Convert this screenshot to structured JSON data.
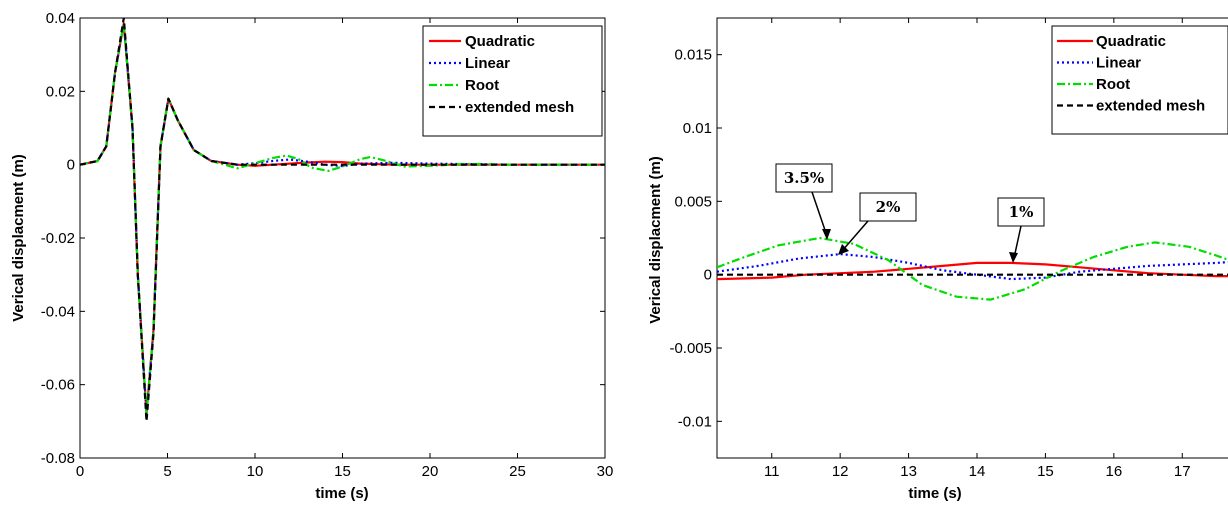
{
  "colors": {
    "Quadratic": "#ff0000",
    "Linear": "#0000ff",
    "Root": "#00dd00",
    "extended mesh": "#000000"
  },
  "chart_data": [
    {
      "type": "line",
      "xlabel": "time (s)",
      "ylabel": "Verical displacment (m)",
      "xlim": [
        0,
        30
      ],
      "ylim": [
        -0.08,
        0.04
      ],
      "xticks": [
        "0",
        "5",
        "10",
        "15",
        "20",
        "25",
        "30"
      ],
      "yticks": [
        "0.04",
        "0.02",
        "0",
        "-0.02",
        "-0.04",
        "-0.06",
        "-0.08"
      ],
      "grid": false,
      "legend_position": "top-right",
      "series": [
        {
          "name": "Quadratic",
          "style": "solid",
          "x": [
            0,
            1,
            1.5,
            2,
            2.5,
            3,
            3.3,
            3.8,
            4.2,
            4.6,
            5.05,
            5.6,
            6.5,
            7.5,
            9,
            10,
            11,
            12,
            13,
            14,
            15,
            16,
            18,
            20,
            25,
            30
          ],
          "y": [
            0,
            0.001,
            0.005,
            0.025,
            0.0385,
            0.01,
            -0.03,
            -0.068,
            -0.045,
            0.005,
            0.018,
            0.012,
            0.004,
            0.001,
            0,
            -0.0003,
            0,
            0.0003,
            0.0006,
            0.0008,
            0.0007,
            0.0003,
            0,
            0,
            0,
            0
          ]
        },
        {
          "name": "Linear",
          "style": "dotted",
          "x": [
            0,
            1,
            1.5,
            2,
            2.5,
            3,
            3.3,
            3.8,
            4.2,
            4.6,
            5.05,
            5.6,
            6.5,
            7.5,
            9,
            10,
            11,
            12,
            13,
            14,
            15,
            16,
            18,
            20,
            25,
            30
          ],
          "y": [
            0,
            0.001,
            0.005,
            0.025,
            0.0385,
            0.01,
            -0.03,
            -0.068,
            -0.045,
            0.005,
            0.018,
            0.012,
            0.004,
            0.001,
            0,
            0.0004,
            0.001,
            0.0014,
            0.0008,
            0,
            -0.0004,
            0.0003,
            0.0005,
            0.0003,
            0,
            0
          ]
        },
        {
          "name": "Root",
          "style": "dashdot",
          "x": [
            0,
            1,
            1.5,
            2,
            2.5,
            3,
            3.3,
            3.8,
            4.2,
            4.6,
            5.05,
            5.6,
            6.5,
            7.5,
            9,
            10,
            11,
            11.8,
            12.5,
            13.2,
            14.2,
            15,
            16,
            16.6,
            17.5,
            18.5,
            20,
            22,
            25,
            30
          ],
          "y": [
            0,
            0.001,
            0.005,
            0.025,
            0.0385,
            0.01,
            -0.03,
            -0.068,
            -0.045,
            0.005,
            0.018,
            0.012,
            0.004,
            0.001,
            -0.001,
            0.0004,
            0.0018,
            0.0025,
            0.0015,
            -0.0008,
            -0.0017,
            -0.0005,
            0.0015,
            0.0021,
            0.001,
            -0.0005,
            -0.0003,
            0.0002,
            0,
            0
          ]
        },
        {
          "name": "extended mesh",
          "style": "dashed",
          "x": [
            0,
            1,
            1.5,
            2,
            2.5,
            3,
            3.3,
            3.8,
            4.2,
            4.6,
            5.05,
            5.6,
            6.5,
            7.5,
            9,
            10,
            12,
            15,
            20,
            25,
            30
          ],
          "y": [
            0,
            0.001,
            0.005,
            0.025,
            0.04,
            0.01,
            -0.03,
            -0.07,
            -0.046,
            0.005,
            0.018,
            0.012,
            0.004,
            0.001,
            0,
            0,
            0,
            0,
            0,
            0,
            0
          ]
        }
      ]
    },
    {
      "type": "line",
      "xlabel": "time (s)",
      "ylabel": "Verical displacment (m)",
      "xlim": [
        10.2,
        17.8
      ],
      "ylim": [
        -0.0125,
        0.0175
      ],
      "xticks": [
        "11",
        "12",
        "13",
        "14",
        "15",
        "16",
        "17"
      ],
      "yticks": [
        "0.015",
        "0.01",
        "0.005",
        "0",
        "-0.005",
        "-0.01"
      ],
      "grid": false,
      "legend_position": "top-right",
      "annotations": [
        "3.5%",
        "2%",
        "1%"
      ],
      "series": [
        {
          "name": "Quadratic",
          "style": "solid",
          "x": [
            10.2,
            11,
            11.5,
            12,
            12.5,
            13,
            13.5,
            14,
            14.5,
            15,
            15.5,
            16,
            16.5,
            17,
            17.5,
            17.8
          ],
          "y": [
            -0.0003,
            -0.0002,
            0,
            0.0001,
            0.0002,
            0.0004,
            0.0006,
            0.0008,
            0.0008,
            0.0007,
            0.0005,
            0.0003,
            0.0001,
            0,
            -0.0001,
            -0.0001
          ]
        },
        {
          "name": "Linear",
          "style": "dotted",
          "x": [
            10.2,
            10.8,
            11.4,
            12,
            12.5,
            13,
            13.5,
            14,
            14.5,
            15,
            15.5,
            16,
            16.5,
            17,
            17.5,
            17.8
          ],
          "y": [
            0.0002,
            0.0006,
            0.0011,
            0.0014,
            0.0012,
            0.0008,
            0.0003,
            0,
            -0.0003,
            -0.0002,
            0.0002,
            0.0004,
            0.0006,
            0.0007,
            0.0008,
            0.0009
          ]
        },
        {
          "name": "Root",
          "style": "dashdot",
          "x": [
            10.2,
            10.6,
            11.1,
            11.7,
            12.2,
            12.7,
            13.2,
            13.7,
            14.2,
            14.7,
            15.2,
            15.7,
            16.2,
            16.6,
            17.1,
            17.5,
            17.8
          ],
          "y": [
            0.0005,
            0.0012,
            0.002,
            0.0025,
            0.0021,
            0.001,
            -0.0007,
            -0.0015,
            -0.0017,
            -0.001,
            0.0002,
            0.0012,
            0.0019,
            0.0022,
            0.0019,
            0.0013,
            0.0008
          ]
        },
        {
          "name": "extended mesh",
          "style": "dashed",
          "x": [
            10.2,
            12,
            14,
            16,
            17.8
          ],
          "y": [
            0,
            0,
            0,
            0,
            0
          ]
        }
      ]
    }
  ],
  "legend": [
    "Quadratic",
    "Linear",
    "Root",
    "extended mesh"
  ]
}
